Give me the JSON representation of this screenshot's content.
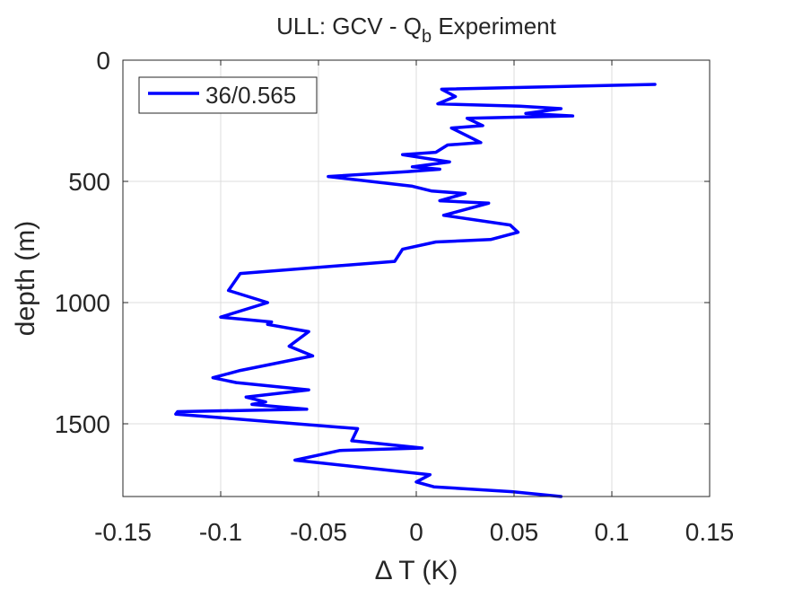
{
  "chart_data": {
    "type": "line",
    "title_main": "ULL: GCV - Q",
    "title_sub": "b",
    "title_rest": " Experiment",
    "xlabel": "Δ T (K)",
    "ylabel": "depth (m)",
    "xlim": [
      -0.15,
      0.15
    ],
    "ylim": [
      0,
      1800
    ],
    "y_reversed": true,
    "grid": true,
    "legend_position": "top-left",
    "xticks": [
      -0.15,
      -0.1,
      -0.05,
      0,
      0.05,
      0.1,
      0.15
    ],
    "xtick_labels": [
      "-0.15",
      "-0.1",
      "-0.05",
      "0",
      "0.05",
      "0.1",
      "0.15"
    ],
    "yticks": [
      0,
      500,
      1000,
      1500
    ],
    "ytick_labels": [
      "0",
      "500",
      "1000",
      "1500"
    ],
    "series": [
      {
        "name": "36/0.565",
        "color": "#0000ff",
        "x": [
          0.122,
          0.013,
          0.02,
          0.011,
          0.053,
          0.074,
          0.056,
          0.08,
          0.026,
          0.034,
          0.018,
          0.033,
          0.016,
          0.01,
          -0.007,
          0.017,
          -0.002,
          0.012,
          -0.005,
          -0.045,
          -0.002,
          0.008,
          0.025,
          0.012,
          0.037,
          0.014,
          0.048,
          0.052,
          0.038,
          0.01,
          -0.007,
          -0.011,
          -0.09,
          -0.096,
          -0.076,
          -0.1,
          -0.074,
          -0.076,
          -0.055,
          -0.065,
          -0.053,
          -0.09,
          -0.104,
          -0.092,
          -0.055,
          -0.087,
          -0.077,
          -0.084,
          -0.07,
          -0.056,
          -0.122,
          -0.123,
          -0.03,
          -0.033,
          0.003,
          -0.039,
          -0.062,
          0.007,
          0.0,
          0.009,
          0.049,
          0.074
        ],
        "y": [
          100,
          120,
          150,
          180,
          190,
          200,
          220,
          230,
          240,
          270,
          280,
          340,
          350,
          380,
          390,
          420,
          440,
          450,
          460,
          480,
          520,
          540,
          550,
          580,
          590,
          640,
          680,
          710,
          740,
          750,
          780,
          830,
          880,
          950,
          1000,
          1060,
          1080,
          1090,
          1120,
          1180,
          1220,
          1280,
          1310,
          1330,
          1360,
          1390,
          1410,
          1420,
          1430,
          1440,
          1450,
          1460,
          1520,
          1570,
          1600,
          1610,
          1650,
          1710,
          1740,
          1760,
          1780,
          1800
        ]
      }
    ]
  }
}
